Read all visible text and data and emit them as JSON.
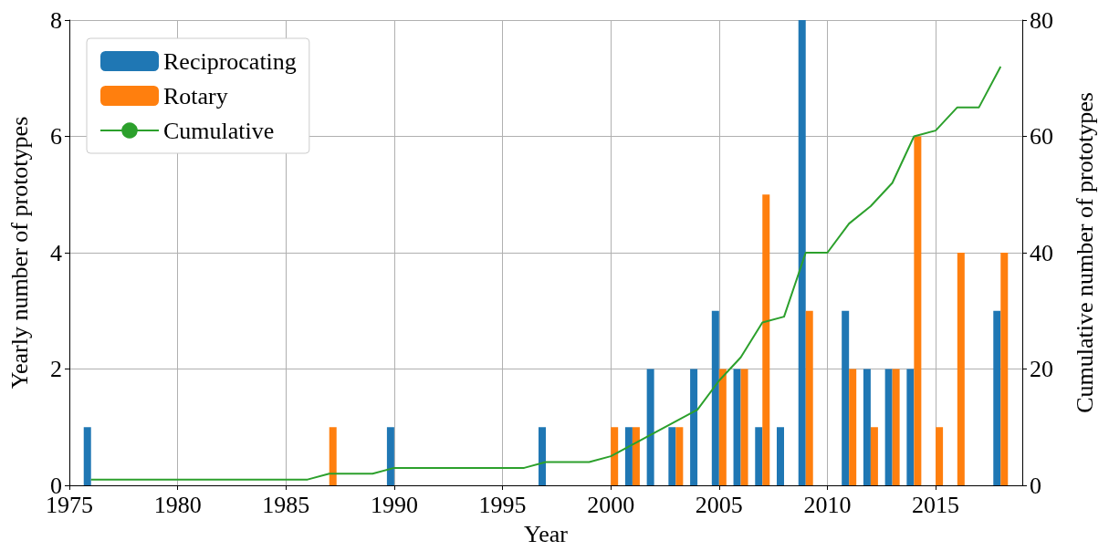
{
  "chart_data": {
    "type": "bar",
    "xlabel": "Year",
    "ylabel": "Yearly number of prototypes",
    "y2label": "Cumulative number of prototypes",
    "series": [
      {
        "name": "Reciprocating",
        "color": "#1f77b4",
        "x": [
          1976,
          1990,
          1997,
          2001,
          2002,
          2003,
          2004,
          2005,
          2006,
          2007,
          2008,
          2009,
          2011,
          2012,
          2013,
          2014,
          2018
        ],
        "values": [
          1,
          1,
          1,
          1,
          2,
          1,
          2,
          3,
          2,
          1,
          1,
          8,
          3,
          2,
          2,
          2,
          3
        ]
      },
      {
        "name": "Rotary",
        "color": "#ff7f0e",
        "x": [
          1987,
          2000,
          2001,
          2003,
          2005,
          2006,
          2007,
          2009,
          2011,
          2012,
          2013,
          2014,
          2015,
          2016,
          2018
        ],
        "values": [
          1,
          1,
          1,
          1,
          2,
          2,
          5,
          3,
          2,
          1,
          2,
          6,
          1,
          4,
          4
        ]
      },
      {
        "name": "Cumulative",
        "type": "line",
        "axis": "y2",
        "color": "#2ca02c",
        "x": [
          1976,
          1977,
          1978,
          1979,
          1980,
          1981,
          1982,
          1983,
          1984,
          1985,
          1986,
          1987,
          1988,
          1989,
          1990,
          1991,
          1992,
          1993,
          1994,
          1995,
          1996,
          1997,
          1998,
          1999,
          2000,
          2001,
          2002,
          2003,
          2004,
          2005,
          2006,
          2007,
          2008,
          2009,
          2010,
          2011,
          2012,
          2013,
          2014,
          2015,
          2016,
          2017,
          2018
        ],
        "values": [
          1,
          1,
          1,
          1,
          1,
          1,
          1,
          1,
          1,
          1,
          1,
          2,
          2,
          2,
          3,
          3,
          3,
          3,
          3,
          3,
          3,
          4,
          4,
          4,
          5,
          7,
          9,
          11,
          13,
          18,
          22,
          28,
          29,
          40,
          40,
          45,
          48,
          52,
          60,
          61,
          65,
          65,
          72
        ]
      }
    ],
    "xlim": [
      1975,
      2019
    ],
    "xticks": [
      1975,
      1980,
      1985,
      1990,
      1995,
      2000,
      2005,
      2010,
      2015
    ],
    "ylim": [
      0,
      8
    ],
    "yticks": [
      0,
      2,
      4,
      6,
      8
    ],
    "y2lim": [
      0,
      80
    ],
    "y2ticks": [
      0,
      20,
      40,
      60,
      80
    ],
    "grid": true,
    "legend": "top left",
    "marker": "none"
  }
}
